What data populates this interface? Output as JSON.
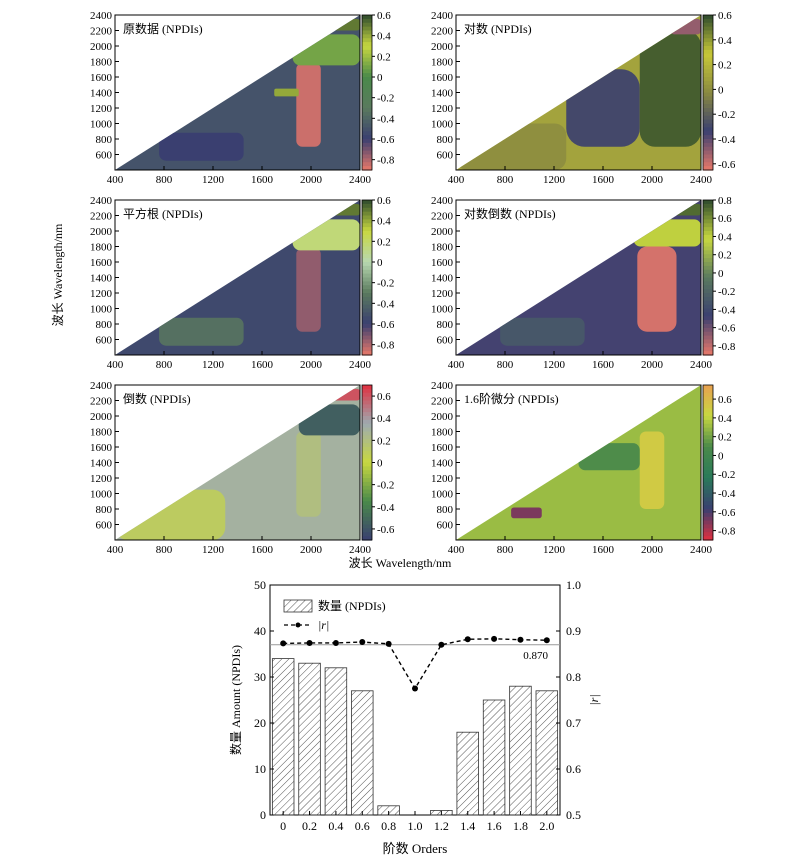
{
  "figure": {
    "shared_ylabel": "波长 Wavelength/nm",
    "shared_xlabel": "波长 Wavelength/nm"
  },
  "chart_data": [
    {
      "type": "heatmap",
      "title": "原数据 (NPDIs)",
      "x_ticks": [
        "400",
        "800",
        "1200",
        "1600",
        "2000",
        "2400"
      ],
      "y_ticks": [
        "600",
        "800",
        "1000",
        "1200",
        "1400",
        "1600",
        "1800",
        "2000",
        "2200",
        "2400"
      ],
      "xlim": [
        400,
        2400
      ],
      "ylim": [
        400,
        2400
      ],
      "colorbar_ticks": [
        "0.6",
        "0.4",
        "0.2",
        "0",
        "-0.2",
        "-0.4",
        "-0.6",
        "-0.8"
      ],
      "colorbar_range": [
        -0.9,
        0.6
      ],
      "colors": [
        "#e8796a",
        "#3a3f70",
        "#5a7a5e",
        "#4a8a4a",
        "#c8d840",
        "#2d4a2d"
      ],
      "regions": [
        {
          "x": [
            760,
            1450
          ],
          "y": [
            520,
            880
          ],
          "value": -0.6
        },
        {
          "x": [
            1880,
            2080
          ],
          "y": [
            700,
            1780
          ],
          "value": -0.85
        },
        {
          "x": [
            1700,
            1900
          ],
          "y": [
            1350,
            1450
          ],
          "value": 0.4
        },
        {
          "x": [
            1850,
            2400
          ],
          "y": [
            1750,
            2150
          ],
          "value": 0.1
        },
        {
          "x": [
            2100,
            2400
          ],
          "y": [
            2200,
            2350
          ],
          "value": 0.5
        }
      ],
      "base_value": -0.5
    },
    {
      "type": "heatmap",
      "title": "对数 (NPDIs)",
      "x_ticks": [
        "400",
        "800",
        "1200",
        "1600",
        "2000",
        "2400"
      ],
      "y_ticks": [
        "600",
        "800",
        "1000",
        "1200",
        "1400",
        "1600",
        "1800",
        "2000",
        "2200",
        "2400"
      ],
      "xlim": [
        400,
        2400
      ],
      "ylim": [
        400,
        2400
      ],
      "colorbar_ticks": [
        "0.6",
        "0.4",
        "0.2",
        "0",
        "-0.2",
        "-0.4",
        "-0.6"
      ],
      "colorbar_range": [
        -0.65,
        0.6
      ],
      "colors": [
        "#e8796a",
        "#3a3f70",
        "#8a8a40",
        "#c8c838",
        "#2d4a2d"
      ],
      "regions": [
        {
          "x": [
            400,
            1300
          ],
          "y": [
            400,
            1000
          ],
          "value": 0.0
        },
        {
          "x": [
            1300,
            1900
          ],
          "y": [
            700,
            1700
          ],
          "value": -0.3
        },
        {
          "x": [
            1900,
            2400
          ],
          "y": [
            700,
            2200
          ],
          "value": 0.55
        },
        {
          "x": [
            2150,
            2400
          ],
          "y": [
            2150,
            2350
          ],
          "value": -0.5
        }
      ],
      "base_value": 0.1
    },
    {
      "type": "heatmap",
      "title": "平方根 (NPDIs)",
      "x_ticks": [
        "400",
        "800",
        "1200",
        "1600",
        "2000",
        "2400"
      ],
      "y_ticks": [
        "600",
        "800",
        "1000",
        "1200",
        "1400",
        "1600",
        "1800",
        "2000",
        "2200",
        "2400"
      ],
      "xlim": [
        400,
        2400
      ],
      "ylim": [
        400,
        2400
      ],
      "colorbar_ticks": [
        "0.6",
        "0.4",
        "0.2",
        "0",
        "-0.2",
        "-0.4",
        "-0.6",
        "-0.8"
      ],
      "colorbar_range": [
        -0.9,
        0.6
      ],
      "colors": [
        "#e8796a",
        "#3a3f70",
        "#5a7a5e",
        "#b8d8b0",
        "#c8d840",
        "#2d4a2d"
      ],
      "regions": [
        {
          "x": [
            760,
            1450
          ],
          "y": [
            520,
            880
          ],
          "value": -0.35
        },
        {
          "x": [
            1880,
            2080
          ],
          "y": [
            700,
            1780
          ],
          "value": -0.75
        },
        {
          "x": [
            1850,
            2400
          ],
          "y": [
            1750,
            2150
          ],
          "value": 0.15
        },
        {
          "x": [
            2100,
            2400
          ],
          "y": [
            2200,
            2350
          ],
          "value": 0.5
        }
      ],
      "base_value": -0.55
    },
    {
      "type": "heatmap",
      "title": "对数倒数 (NPDIs)",
      "x_ticks": [
        "400",
        "800",
        "1200",
        "1600",
        "2000",
        "2400"
      ],
      "y_ticks": [
        "600",
        "800",
        "1000",
        "1200",
        "1400",
        "1600",
        "1800",
        "2000",
        "2200",
        "2400"
      ],
      "xlim": [
        400,
        2400
      ],
      "ylim": [
        400,
        2400
      ],
      "colorbar_ticks": [
        "0.8",
        "0.6",
        "0.4",
        "0.2",
        "0",
        "-0.2",
        "-0.4",
        "-0.6",
        "-0.8"
      ],
      "colorbar_range": [
        -0.9,
        0.8
      ],
      "colors": [
        "#e8796a",
        "#3a3f70",
        "#5a7a5e",
        "#c8d840",
        "#2d4a2d"
      ],
      "regions": [
        {
          "x": [
            760,
            1450
          ],
          "y": [
            520,
            880
          ],
          "value": -0.3
        },
        {
          "x": [
            1880,
            2200
          ],
          "y": [
            700,
            1800
          ],
          "value": -0.85
        },
        {
          "x": [
            1850,
            2400
          ],
          "y": [
            1800,
            2150
          ],
          "value": 0.4
        },
        {
          "x": [
            2150,
            2400
          ],
          "y": [
            2200,
            2350
          ],
          "value": 0.7
        }
      ],
      "base_value": -0.5
    },
    {
      "type": "heatmap",
      "title": "倒数 (NPDIs)",
      "x_ticks": [
        "400",
        "800",
        "1200",
        "1600",
        "2000",
        "2400"
      ],
      "y_ticks": [
        "600",
        "800",
        "1000",
        "1200",
        "1400",
        "1600",
        "1800",
        "2000",
        "2200",
        "2400"
      ],
      "xlim": [
        400,
        2400
      ],
      "ylim": [
        400,
        2400
      ],
      "colorbar_ticks": [
        "0.6",
        "0.4",
        "0.2",
        "0",
        "-0.2",
        "-0.4",
        "-0.6"
      ],
      "colorbar_range": [
        -0.7,
        0.7
      ],
      "colors": [
        "#3a3f70",
        "#4a8a4a",
        "#c8d840",
        "#9eaab0",
        "#e03040"
      ],
      "regions": [
        {
          "x": [
            400,
            1300
          ],
          "y": [
            400,
            1050
          ],
          "value": 0.1
        },
        {
          "x": [
            1880,
            2080
          ],
          "y": [
            700,
            1800
          ],
          "value": 0.2
        },
        {
          "x": [
            1900,
            2400
          ],
          "y": [
            1750,
            2150
          ],
          "value": -0.55
        },
        {
          "x": [
            2150,
            2400
          ],
          "y": [
            2200,
            2350
          ],
          "value": 0.6
        }
      ],
      "base_value": 0.3
    },
    {
      "type": "heatmap",
      "title": "1.6阶微分 (NPDIs)",
      "x_ticks": [
        "400",
        "800",
        "1200",
        "1600",
        "2000",
        "2400"
      ],
      "y_ticks": [
        "600",
        "800",
        "1000",
        "1200",
        "1400",
        "1600",
        "1800",
        "2000",
        "2200",
        "2400"
      ],
      "xlim": [
        400,
        2400
      ],
      "ylim": [
        400,
        2400
      ],
      "colorbar_ticks": [
        "0.6",
        "0.4",
        "0.2",
        "0",
        "-0.2",
        "-0.4",
        "-0.6",
        "-0.8"
      ],
      "colorbar_range": [
        -0.9,
        0.75
      ],
      "colors": [
        "#e03040",
        "#3a3f70",
        "#2a7a5a",
        "#4a8a4a",
        "#c8d840",
        "#e8a050"
      ],
      "regions": [
        {
          "x": [
            850,
            1100
          ],
          "y": [
            680,
            820
          ],
          "value": -0.7
        },
        {
          "x": [
            1900,
            2100
          ],
          "y": [
            800,
            1800
          ],
          "value": 0.5
        },
        {
          "x": [
            1400,
            1900
          ],
          "y": [
            1300,
            1650
          ],
          "value": 0.1
        },
        {
          "x": [
            2000,
            2400
          ],
          "y": [
            1900,
            2300
          ],
          "value": 0.3
        }
      ],
      "base_value": 0.3
    },
    {
      "type": "bar",
      "categories": [
        "0",
        "0.2",
        "0.4",
        "0.6",
        "0.8",
        "1.0",
        "1.2",
        "1.4",
        "1.6",
        "1.8",
        "2.0"
      ],
      "series": [
        {
          "name": "数量 (NPDIs)",
          "type": "bar",
          "axis": "left",
          "values": [
            34,
            33,
            32,
            27,
            2,
            0,
            1,
            18,
            25,
            28,
            27
          ]
        },
        {
          "name": "|r|",
          "type": "line",
          "axis": "right",
          "values": [
            0.873,
            0.874,
            0.874,
            0.876,
            0.872,
            0.775,
            0.87,
            0.882,
            0.883,
            0.881,
            0.88
          ]
        }
      ],
      "xlabel": "阶数 Orders",
      "ylabel": "数量 Amount (NPDIs)",
      "y2label": "|r|",
      "ylim": [
        0,
        50
      ],
      "y2lim": [
        0.5,
        1.0
      ],
      "yticks": [
        "0",
        "10",
        "20",
        "30",
        "40",
        "50"
      ],
      "y2ticks": [
        "0.5",
        "0.6",
        "0.7",
        "0.8",
        "0.9",
        "1.0"
      ],
      "reference_line": {
        "value": 0.87,
        "label": "0.870"
      },
      "legend_position": "top-left"
    }
  ]
}
